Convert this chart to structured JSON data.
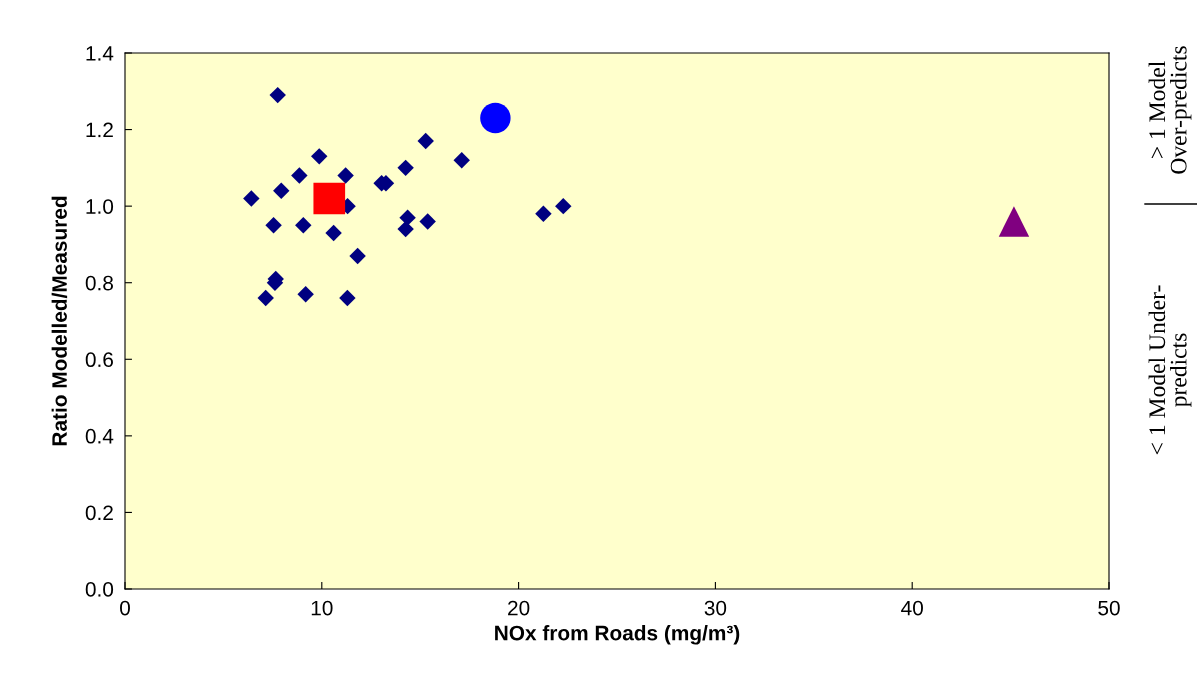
{
  "chart_data": {
    "type": "scatter",
    "xlabel": "NOx from Roads (mg/m³)",
    "ylabel": "Ratio Modelled/Measured",
    "xlim": [
      0,
      50
    ],
    "xticks": [
      0,
      10,
      20,
      30,
      40,
      50
    ],
    "ylim": [
      0,
      1.4
    ],
    "yticks": [
      {
        "value": 0,
        "label": "0.0"
      },
      {
        "value": 0.2,
        "label": "0.2"
      },
      {
        "value": 0.4,
        "label": "0.4"
      },
      {
        "value": 0.6,
        "label": "0.6"
      },
      {
        "value": 0.8,
        "label": "0.8"
      },
      {
        "value": 1.0,
        "label": "1.0"
      },
      {
        "value": 1.2,
        "label": "1.2"
      },
      {
        "value": 1.4,
        "label": "1.4"
      }
    ],
    "grid": false,
    "legend": false,
    "series": [
      {
        "color": "#000080",
        "marker": "diamond",
        "x": [
          7.76,
          15.28,
          17.11,
          9.87,
          8.86,
          11.21,
          14.26,
          13.04,
          13.26,
          7.94,
          6.42,
          11.31,
          21.26,
          22.27,
          7.55,
          9.06,
          10.6,
          14.36,
          14.26,
          15.38,
          11.82,
          7.66,
          7.62,
          7.15,
          9.18,
          11.3
        ],
        "values": [
          1.29,
          1.17,
          1.12,
          1.13,
          1.08,
          1.08,
          1.1,
          1.06,
          1.06,
          1.04,
          1.02,
          1.0,
          0.98,
          1.0,
          0.95,
          0.95,
          0.93,
          0.97,
          0.94,
          0.96,
          0.87,
          0.81,
          0.8,
          0.76,
          0.77,
          0.76
        ]
      },
      {
        "color": "#ff0000",
        "marker": "square",
        "x": [
          10.38
        ],
        "values": [
          1.02
        ]
      },
      {
        "color": "#0000ff",
        "marker": "circle",
        "x": [
          18.82
        ],
        "values": [
          1.23
        ]
      },
      {
        "color": "#800080",
        "marker": "triangle",
        "x": [
          45.17
        ],
        "values": [
          0.96
        ]
      }
    ],
    "annotations": [
      "> 1 Model\nOver-predicts",
      "< 1 Model Under-\npredicts"
    ]
  }
}
